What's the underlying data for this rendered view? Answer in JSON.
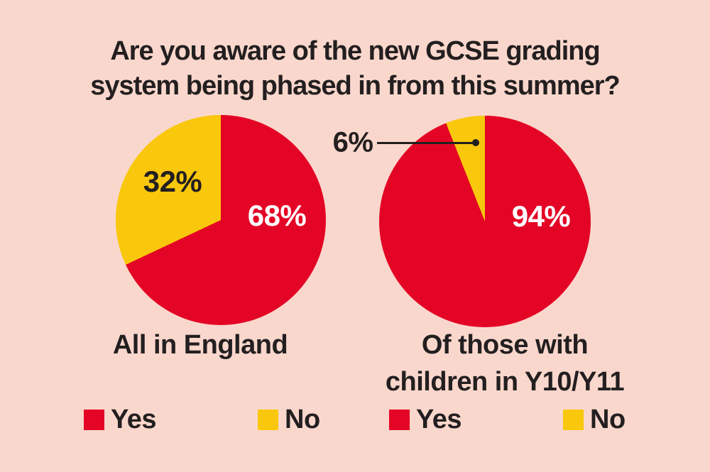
{
  "colors": {
    "background": "#FAD7CC",
    "text": "#231F20",
    "yes_red": "#E40425",
    "no_yellow": "#F9C70B",
    "callout_line": "#231F20"
  },
  "title": {
    "lines": [
      "Are you aware of the new GCSE grading",
      "system being phased in from this summer?"
    ]
  },
  "chart_data": [
    {
      "type": "pie",
      "title": "All in England",
      "categories": [
        "Yes",
        "No"
      ],
      "values": [
        68,
        32
      ],
      "start_angle_deg": 0,
      "direction": "clockwise",
      "slices": [
        {
          "label": "Yes",
          "value": 68,
          "value_label": "68%",
          "color": "#E40425",
          "label_color": "#FFFFFF"
        },
        {
          "label": "No",
          "value": 32,
          "value_label": "32%",
          "color": "#F9C70B",
          "label_color": "#231F20"
        }
      ],
      "legend": [
        {
          "label": "Yes",
          "color": "#E40425"
        },
        {
          "label": "No",
          "color": "#F9C70B"
        }
      ],
      "legend_position": "bottom"
    },
    {
      "type": "pie",
      "title": "Of those with children in Y10/Y11",
      "title_lines": [
        "Of those with",
        "children in Y10/Y11"
      ],
      "categories": [
        "Yes",
        "No"
      ],
      "values": [
        94,
        6
      ],
      "start_angle_deg": 0,
      "direction": "clockwise",
      "slices": [
        {
          "label": "Yes",
          "value": 94,
          "value_label": "94%",
          "color": "#E40425",
          "label_color": "#FFFFFF"
        },
        {
          "label": "No",
          "value": 6,
          "value_label": "6%",
          "color": "#F9C70B",
          "label_color": "#231F20",
          "callout": true
        }
      ],
      "legend": [
        {
          "label": "Yes",
          "color": "#E40425"
        },
        {
          "label": "No",
          "color": "#F9C70B"
        }
      ],
      "legend_position": "bottom"
    }
  ]
}
